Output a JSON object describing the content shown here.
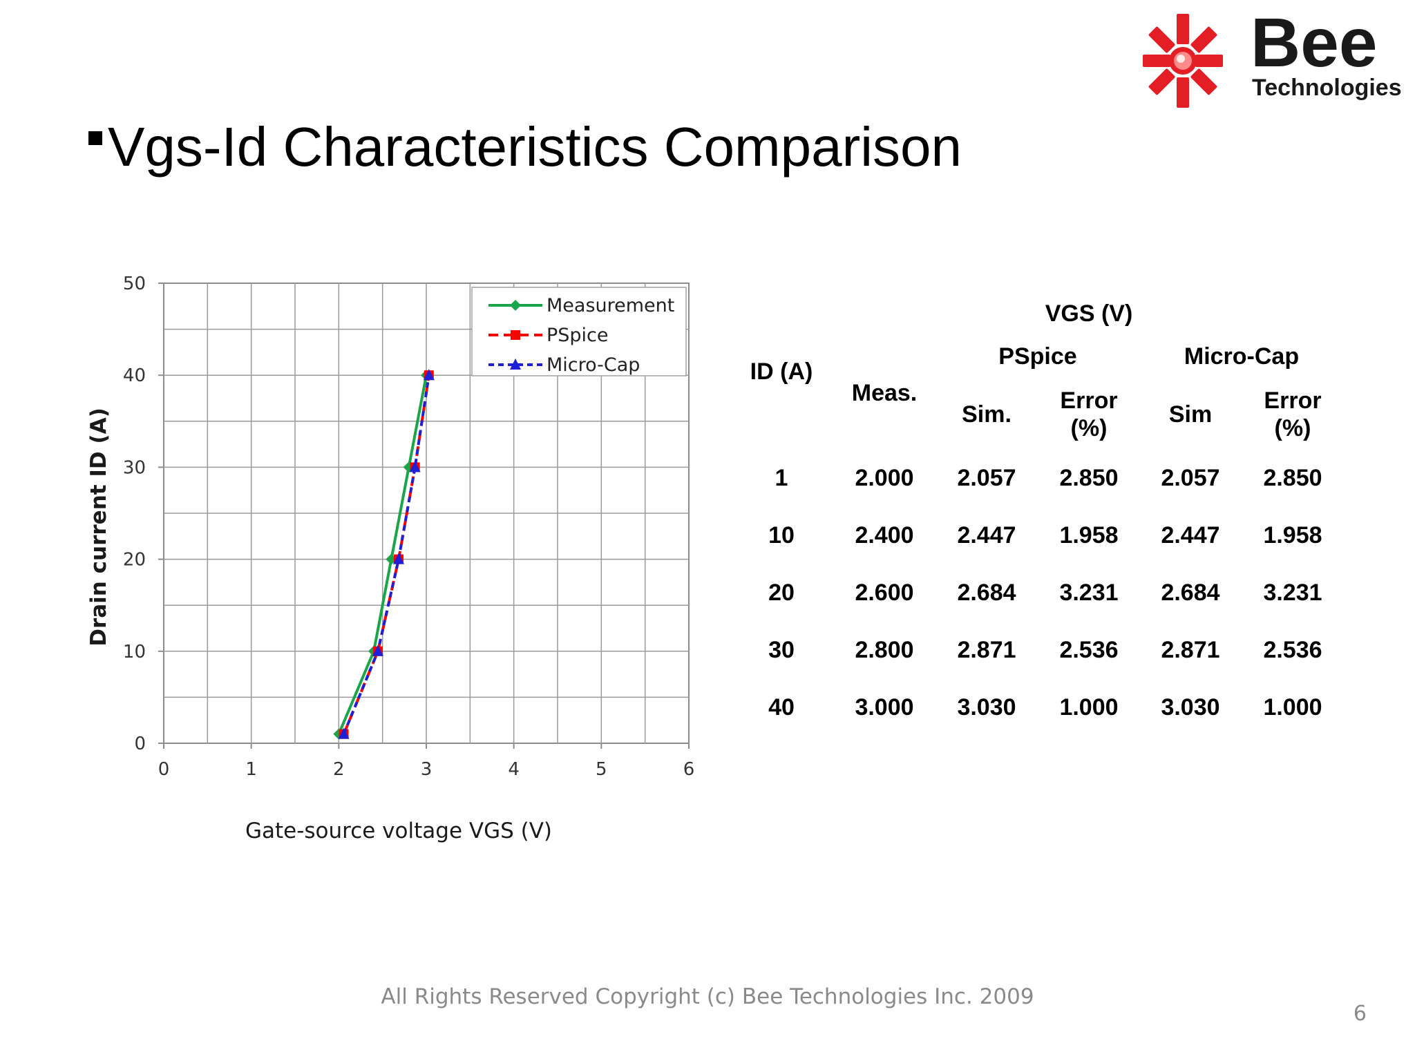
{
  "logo": {
    "brand": "Bee",
    "subtitle": "Technologies",
    "colors": {
      "red": "#e31e24",
      "dark": "#1a1a1a"
    }
  },
  "slide": {
    "title": "Vgs-Id Characteristics Comparison",
    "footer": "All Rights Reserved Copyright (c) Bee Technologies Inc. 2009",
    "page_number": "6"
  },
  "table": {
    "group_header": "VGS (V)",
    "id_header": "ID (A)",
    "meas_header": "Meas.",
    "pspice_header": "PSpice",
    "microcap_header": "Micro-Cap",
    "sim_header": "Sim.",
    "sim_header2": "Sim",
    "error_header_1": "Error",
    "error_header_2": "(%)",
    "rows": [
      {
        "id": "1",
        "meas": "2.000",
        "pspice_sim": "2.057",
        "pspice_err": "2.850",
        "mc_sim": "2.057",
        "mc_err": "2.850"
      },
      {
        "id": "10",
        "meas": "2.400",
        "pspice_sim": "2.447",
        "pspice_err": "1.958",
        "mc_sim": "2.447",
        "mc_err": "1.958"
      },
      {
        "id": "20",
        "meas": "2.600",
        "pspice_sim": "2.684",
        "pspice_err": "3.231",
        "mc_sim": "2.684",
        "mc_err": "3.231"
      },
      {
        "id": "30",
        "meas": "2.800",
        "pspice_sim": "2.871",
        "pspice_err": "2.536",
        "mc_sim": "2.871",
        "mc_err": "2.536"
      },
      {
        "id": "40",
        "meas": "3.000",
        "pspice_sim": "3.030",
        "pspice_err": "1.000",
        "mc_sim": "3.030",
        "mc_err": "1.000"
      }
    ]
  },
  "chart_data": {
    "type": "line",
    "title": "",
    "xlabel": "Gate-source voltage VGS (V)",
    "ylabel": "Drain current ID (A)",
    "xlim": [
      0,
      6
    ],
    "ylim": [
      0,
      50
    ],
    "xticks": [
      "0",
      "1",
      "2",
      "3",
      "4",
      "5",
      "6"
    ],
    "yticks": [
      "0",
      "10",
      "20",
      "30",
      "40",
      "50"
    ],
    "grid": true,
    "legend_position": "top-right",
    "series": [
      {
        "name": "Measurement",
        "color": "#1aa54a",
        "marker": "diamond",
        "dash": "solid",
        "x": [
          2.0,
          2.4,
          2.6,
          2.8,
          3.0
        ],
        "y": [
          1,
          10,
          20,
          30,
          40
        ]
      },
      {
        "name": "PSpice",
        "color": "#ff0000",
        "marker": "square",
        "dash": "dashed",
        "x": [
          2.057,
          2.447,
          2.684,
          2.871,
          3.03
        ],
        "y": [
          1,
          10,
          20,
          30,
          40
        ]
      },
      {
        "name": "Micro-Cap",
        "color": "#1f1fd6",
        "marker": "triangle",
        "dash": "dotted",
        "x": [
          2.057,
          2.447,
          2.684,
          2.871,
          3.03
        ],
        "y": [
          1,
          10,
          20,
          30,
          40
        ]
      }
    ]
  }
}
